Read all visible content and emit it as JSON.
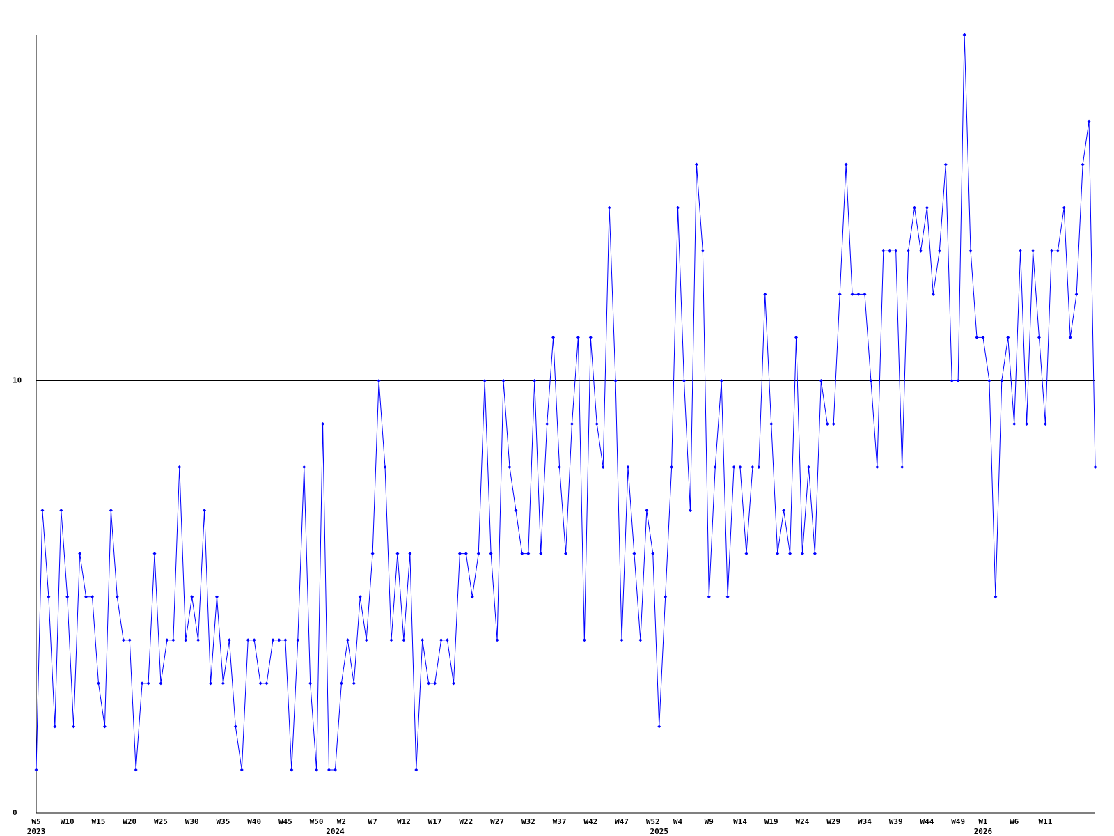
{
  "chart_data": {
    "type": "line",
    "categories": [
      "W5",
      null,
      null,
      null,
      null,
      "W10",
      null,
      null,
      null,
      null,
      "W15",
      null,
      null,
      null,
      null,
      "W20",
      null,
      null,
      null,
      null,
      "W25",
      null,
      null,
      null,
      null,
      "W30",
      null,
      null,
      null,
      null,
      "W35",
      null,
      null,
      null,
      null,
      "W40",
      null,
      null,
      null,
      null,
      "W45",
      null,
      null,
      null,
      null,
      "W50",
      null,
      null,
      null,
      "W2",
      null,
      null,
      null,
      null,
      "W7",
      null,
      null,
      null,
      null,
      "W12",
      null,
      null,
      null,
      null,
      "W17",
      null,
      null,
      null,
      null,
      "W22",
      null,
      null,
      null,
      null,
      "W27",
      null,
      null,
      null,
      null,
      "W32",
      null,
      null,
      null,
      null,
      "W37",
      null,
      null,
      null,
      null,
      "W42",
      null,
      null,
      null,
      null,
      "W47",
      null,
      null,
      null,
      null,
      "W52",
      null,
      null,
      null,
      "W4",
      null,
      null,
      null,
      null,
      "W9",
      null,
      null,
      null,
      null,
      "W14",
      null,
      null,
      null,
      null,
      "W19",
      null,
      null,
      null,
      null,
      "W24",
      null,
      null,
      null,
      null,
      "W29",
      null,
      null,
      null,
      null,
      "W34",
      null,
      null,
      null,
      null,
      "W39",
      null,
      null,
      null,
      null,
      "W44",
      null,
      null,
      null,
      null,
      "W49",
      null,
      null,
      null,
      "W1",
      null,
      null,
      null,
      null,
      "W6",
      null,
      null,
      null,
      null,
      "W11",
      null,
      null,
      null,
      null,
      null,
      null,
      null,
      null
    ],
    "category_years": [
      "2023",
      null,
      null,
      null,
      null,
      null,
      null,
      null,
      null,
      null,
      null,
      null,
      null,
      null,
      null,
      null,
      null,
      null,
      null,
      null,
      null,
      null,
      null,
      null,
      null,
      null,
      null,
      null,
      null,
      null,
      null,
      null,
      null,
      null,
      null,
      null,
      null,
      null,
      null,
      null,
      null,
      null,
      null,
      null,
      null,
      null,
      null,
      null,
      "2024",
      null,
      null,
      null,
      null,
      null,
      null,
      null,
      null,
      null,
      null,
      null,
      null,
      null,
      null,
      null,
      null,
      null,
      null,
      null,
      null,
      null,
      null,
      null,
      null,
      null,
      null,
      null,
      null,
      null,
      null,
      null,
      null,
      null,
      null,
      null,
      null,
      null,
      null,
      null,
      null,
      null,
      null,
      null,
      null,
      null,
      null,
      null,
      null,
      null,
      null,
      null,
      "2025",
      null,
      null,
      null,
      null,
      null,
      null,
      null,
      null,
      null,
      null,
      null,
      null,
      null,
      null,
      null,
      null,
      null,
      null,
      null,
      null,
      null,
      null,
      null,
      null,
      null,
      null,
      null,
      null,
      null,
      null,
      null,
      null,
      null,
      null,
      null,
      null,
      null,
      null,
      null,
      null,
      null,
      null,
      null,
      null,
      null,
      null,
      null,
      null,
      null,
      null,
      null,
      "2026",
      null,
      null,
      null,
      null,
      null,
      null,
      null,
      null,
      null,
      null,
      null,
      null,
      null,
      null,
      null,
      null,
      null
    ],
    "series": [
      {
        "color": "#0000ff",
        "values": [
          1,
          7,
          5,
          2,
          7,
          5,
          2,
          6,
          5,
          5,
          3,
          2,
          7,
          5,
          4,
          4,
          1,
          3,
          3,
          6,
          3,
          4,
          4,
          8,
          4,
          5,
          4,
          7,
          3,
          5,
          3,
          4,
          2,
          1,
          4,
          4,
          3,
          3,
          4,
          4,
          4,
          1,
          4,
          8,
          3,
          1,
          9,
          1,
          1,
          3,
          4,
          3,
          5,
          4,
          6,
          10,
          8,
          4,
          6,
          4,
          6,
          1,
          4,
          3,
          3,
          4,
          4,
          3,
          6,
          6,
          5,
          6,
          10,
          6,
          4,
          10,
          8,
          7,
          6,
          6,
          10,
          6,
          9,
          11,
          8,
          6,
          9,
          11,
          4,
          11,
          9,
          8,
          14,
          10,
          4,
          8,
          6,
          4,
          7,
          6,
          2,
          5,
          8,
          14,
          10,
          7,
          15,
          13,
          5,
          8,
          10,
          5,
          8,
          8,
          6,
          8,
          8,
          12,
          9,
          6,
          7,
          6,
          11,
          6,
          8,
          6,
          10,
          9,
          9,
          12,
          15,
          12,
          12,
          12,
          10,
          8,
          13,
          13,
          13,
          8,
          13,
          14,
          13,
          14,
          12,
          13,
          15,
          10,
          10,
          18,
          13,
          11,
          11,
          10,
          5,
          10,
          11,
          9,
          13,
          9,
          13,
          11,
          9,
          13,
          13,
          14,
          11,
          12,
          15,
          16,
          8
        ]
      }
    ],
    "ylim": [
      0,
      18
    ],
    "yticks": [
      0,
      10
    ],
    "grid": true
  }
}
